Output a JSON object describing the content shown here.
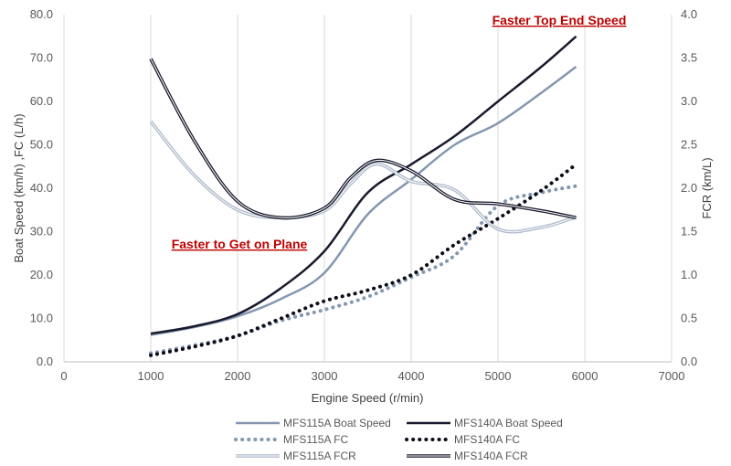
{
  "chart_data": {
    "type": "line",
    "xlabel": "Engine Speed (r/min)",
    "ylabel": "Boat Speed (km/h) ,FC (L/h)",
    "y2label": "FCR (km/L)",
    "xlim": [
      0,
      7000
    ],
    "ylim": [
      0,
      80
    ],
    "y2lim": [
      0,
      4
    ],
    "xticks": [
      "0",
      "1000",
      "2000",
      "3000",
      "4000",
      "5000",
      "6000",
      "7000"
    ],
    "yticks": [
      "0.0",
      "10.0",
      "20.0",
      "30.0",
      "40.0",
      "50.0",
      "60.0",
      "70.0",
      "80.0"
    ],
    "y2ticks": [
      "0.0",
      "0.5",
      "1.0",
      "1.5",
      "2.0",
      "2.5",
      "3.0",
      "3.5",
      "4.0"
    ],
    "grid": "vertical",
    "legend_position": "bottom",
    "annotations": [
      "Faster Top End Speed",
      "Faster to Get on Plane"
    ],
    "series": [
      {
        "name": "MFS115A Boat Speed",
        "axis": "left",
        "color": "#8497b0",
        "style": "solid",
        "x": [
          1000,
          1500,
          2000,
          2500,
          3000,
          3500,
          4000,
          4500,
          5000,
          5500,
          5900
        ],
        "y": [
          6.2,
          8.0,
          10.5,
          14.5,
          20.5,
          34.0,
          42.0,
          50.0,
          55.0,
          62.0,
          68.0
        ]
      },
      {
        "name": "MFS140A Boat Speed",
        "axis": "left",
        "color": "#1a1a2e",
        "style": "solid",
        "x": [
          1000,
          1500,
          2000,
          2500,
          3000,
          3500,
          4000,
          4500,
          5000,
          5500,
          5900
        ],
        "y": [
          6.5,
          8.2,
          11.0,
          17.0,
          25.5,
          39.0,
          45.5,
          52.0,
          60.0,
          68.0,
          75.0
        ]
      },
      {
        "name": "MFS115A FC",
        "axis": "left",
        "color": "#8497b0",
        "style": "dotted",
        "x": [
          1000,
          1500,
          2000,
          2500,
          3000,
          3500,
          4000,
          4500,
          5000,
          5500,
          5900
        ],
        "y": [
          2.0,
          3.8,
          6.0,
          9.5,
          12.0,
          15.0,
          19.5,
          24.5,
          36.0,
          39.0,
          40.5
        ]
      },
      {
        "name": "MFS140A FC",
        "axis": "left",
        "color": "#0d0d1a",
        "style": "dotted",
        "x": [
          1000,
          1500,
          2000,
          2500,
          3000,
          3500,
          4000,
          4500,
          5000,
          5500,
          5900
        ],
        "y": [
          1.5,
          3.5,
          6.0,
          10.0,
          14.0,
          16.5,
          20.0,
          27.0,
          33.0,
          39.5,
          45.5
        ]
      },
      {
        "name": "MFS115A FCR",
        "axis": "right",
        "color": "#adb9ca",
        "style": "double",
        "x": [
          1000,
          1500,
          2000,
          2500,
          3000,
          3300,
          3600,
          4000,
          4500,
          5000,
          5500,
          5900
        ],
        "y": [
          2.77,
          2.15,
          1.75,
          1.66,
          1.74,
          2.05,
          2.28,
          2.08,
          1.98,
          1.53,
          1.55,
          1.67
        ]
      },
      {
        "name": "MFS140A FCR",
        "axis": "right",
        "color": "#1a1a2e",
        "style": "double",
        "x": [
          1000,
          1500,
          2000,
          2500,
          3000,
          3300,
          3600,
          4000,
          4500,
          5000,
          5500,
          5900
        ],
        "y": [
          3.49,
          2.55,
          1.85,
          1.66,
          1.77,
          2.12,
          2.32,
          2.2,
          1.87,
          1.82,
          1.74,
          1.66
        ]
      }
    ]
  }
}
